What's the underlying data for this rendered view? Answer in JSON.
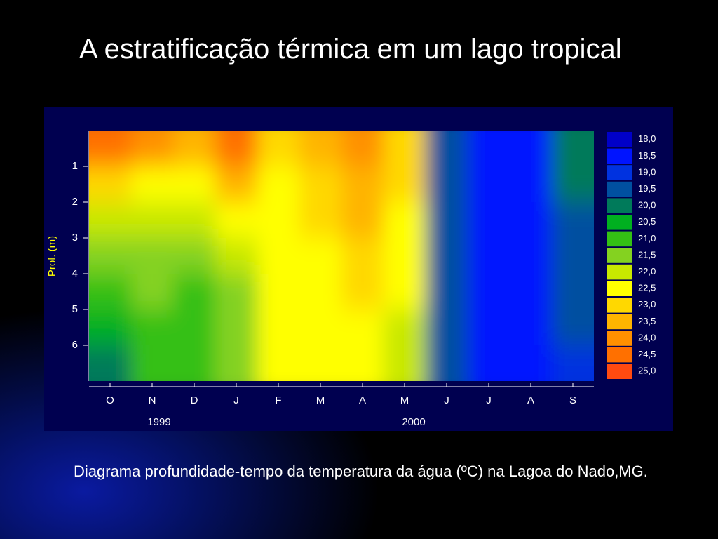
{
  "slide": {
    "title": "A estratificação térmica em um lago tropical",
    "caption": "Diagrama profundidade-tempo da temperatura da água (ºC) na Lagoa do Nado,MG."
  },
  "chart_data": {
    "type": "contour",
    "y_label": "Prof. (m)",
    "categories": [
      "O",
      "N",
      "D",
      "J",
      "F",
      "M",
      "A",
      "M",
      "J",
      "J",
      "A",
      "S"
    ],
    "x_groups": [
      "1999",
      "2000"
    ],
    "ylim": [
      0,
      7
    ],
    "yticks": [
      1,
      2,
      3,
      4,
      5,
      6
    ],
    "y_inverted": true,
    "depths": [
      0.5,
      1.5,
      2.5,
      3.5,
      4.5,
      5.5,
      6.5
    ],
    "z": [
      [
        24.5,
        23,
        22,
        21.5,
        21,
        20.5,
        20
      ],
      [
        24,
        22.5,
        22,
        21.5,
        21.5,
        21,
        21
      ],
      [
        23.5,
        22.5,
        22,
        21.5,
        21,
        21,
        21
      ],
      [
        24.5,
        23.5,
        22.5,
        22,
        21.5,
        21.5,
        21.5
      ],
      [
        23,
        22.5,
        22.5,
        22.5,
        22.5,
        22.5,
        22.5
      ],
      [
        23.5,
        23,
        23,
        22.5,
        22.5,
        22.5,
        22.5
      ],
      [
        24,
        23.5,
        23.5,
        23,
        23,
        22.5,
        22.5
      ],
      [
        23,
        23,
        22.5,
        22.5,
        22.5,
        22,
        22
      ],
      [
        19.5,
        19.5,
        19.5,
        19.5,
        19.5,
        19.5,
        19.5
      ],
      [
        18.5,
        18.5,
        18.5,
        18.5,
        18.5,
        18.5,
        18.5
      ],
      [
        18.5,
        18.5,
        18.5,
        18.5,
        18.5,
        18.5,
        18.5
      ],
      [
        20,
        20,
        19.5,
        19.5,
        19.5,
        19.5,
        19
      ]
    ],
    "levels": [
      {
        "value": 18,
        "label": "18,0"
      },
      {
        "value": 18.5,
        "label": "18,5"
      },
      {
        "value": 19,
        "label": "19,0"
      },
      {
        "value": 19.5,
        "label": "19,5"
      },
      {
        "value": 20,
        "label": "20,0"
      },
      {
        "value": 20.5,
        "label": "20,5"
      },
      {
        "value": 21,
        "label": "21,0"
      },
      {
        "value": 21.5,
        "label": "21,5"
      },
      {
        "value": 22,
        "label": "22,0"
      },
      {
        "value": 22.5,
        "label": "22,5"
      },
      {
        "value": 23,
        "label": "23,0"
      },
      {
        "value": 23.5,
        "label": "23,5"
      },
      {
        "value": 24,
        "label": "24,0"
      },
      {
        "value": 24.5,
        "label": "24,5"
      },
      {
        "value": 25,
        "label": "25,0"
      }
    ],
    "level_colors": [
      "#0000c8",
      "#0014ff",
      "#0032e0",
      "#0050a0",
      "#007a5a",
      "#00b020",
      "#34c014",
      "#84d220",
      "#c8e800",
      "#ffff00",
      "#ffd800",
      "#ffb400",
      "#ff9000",
      "#ff7000",
      "#ff4a10"
    ]
  }
}
